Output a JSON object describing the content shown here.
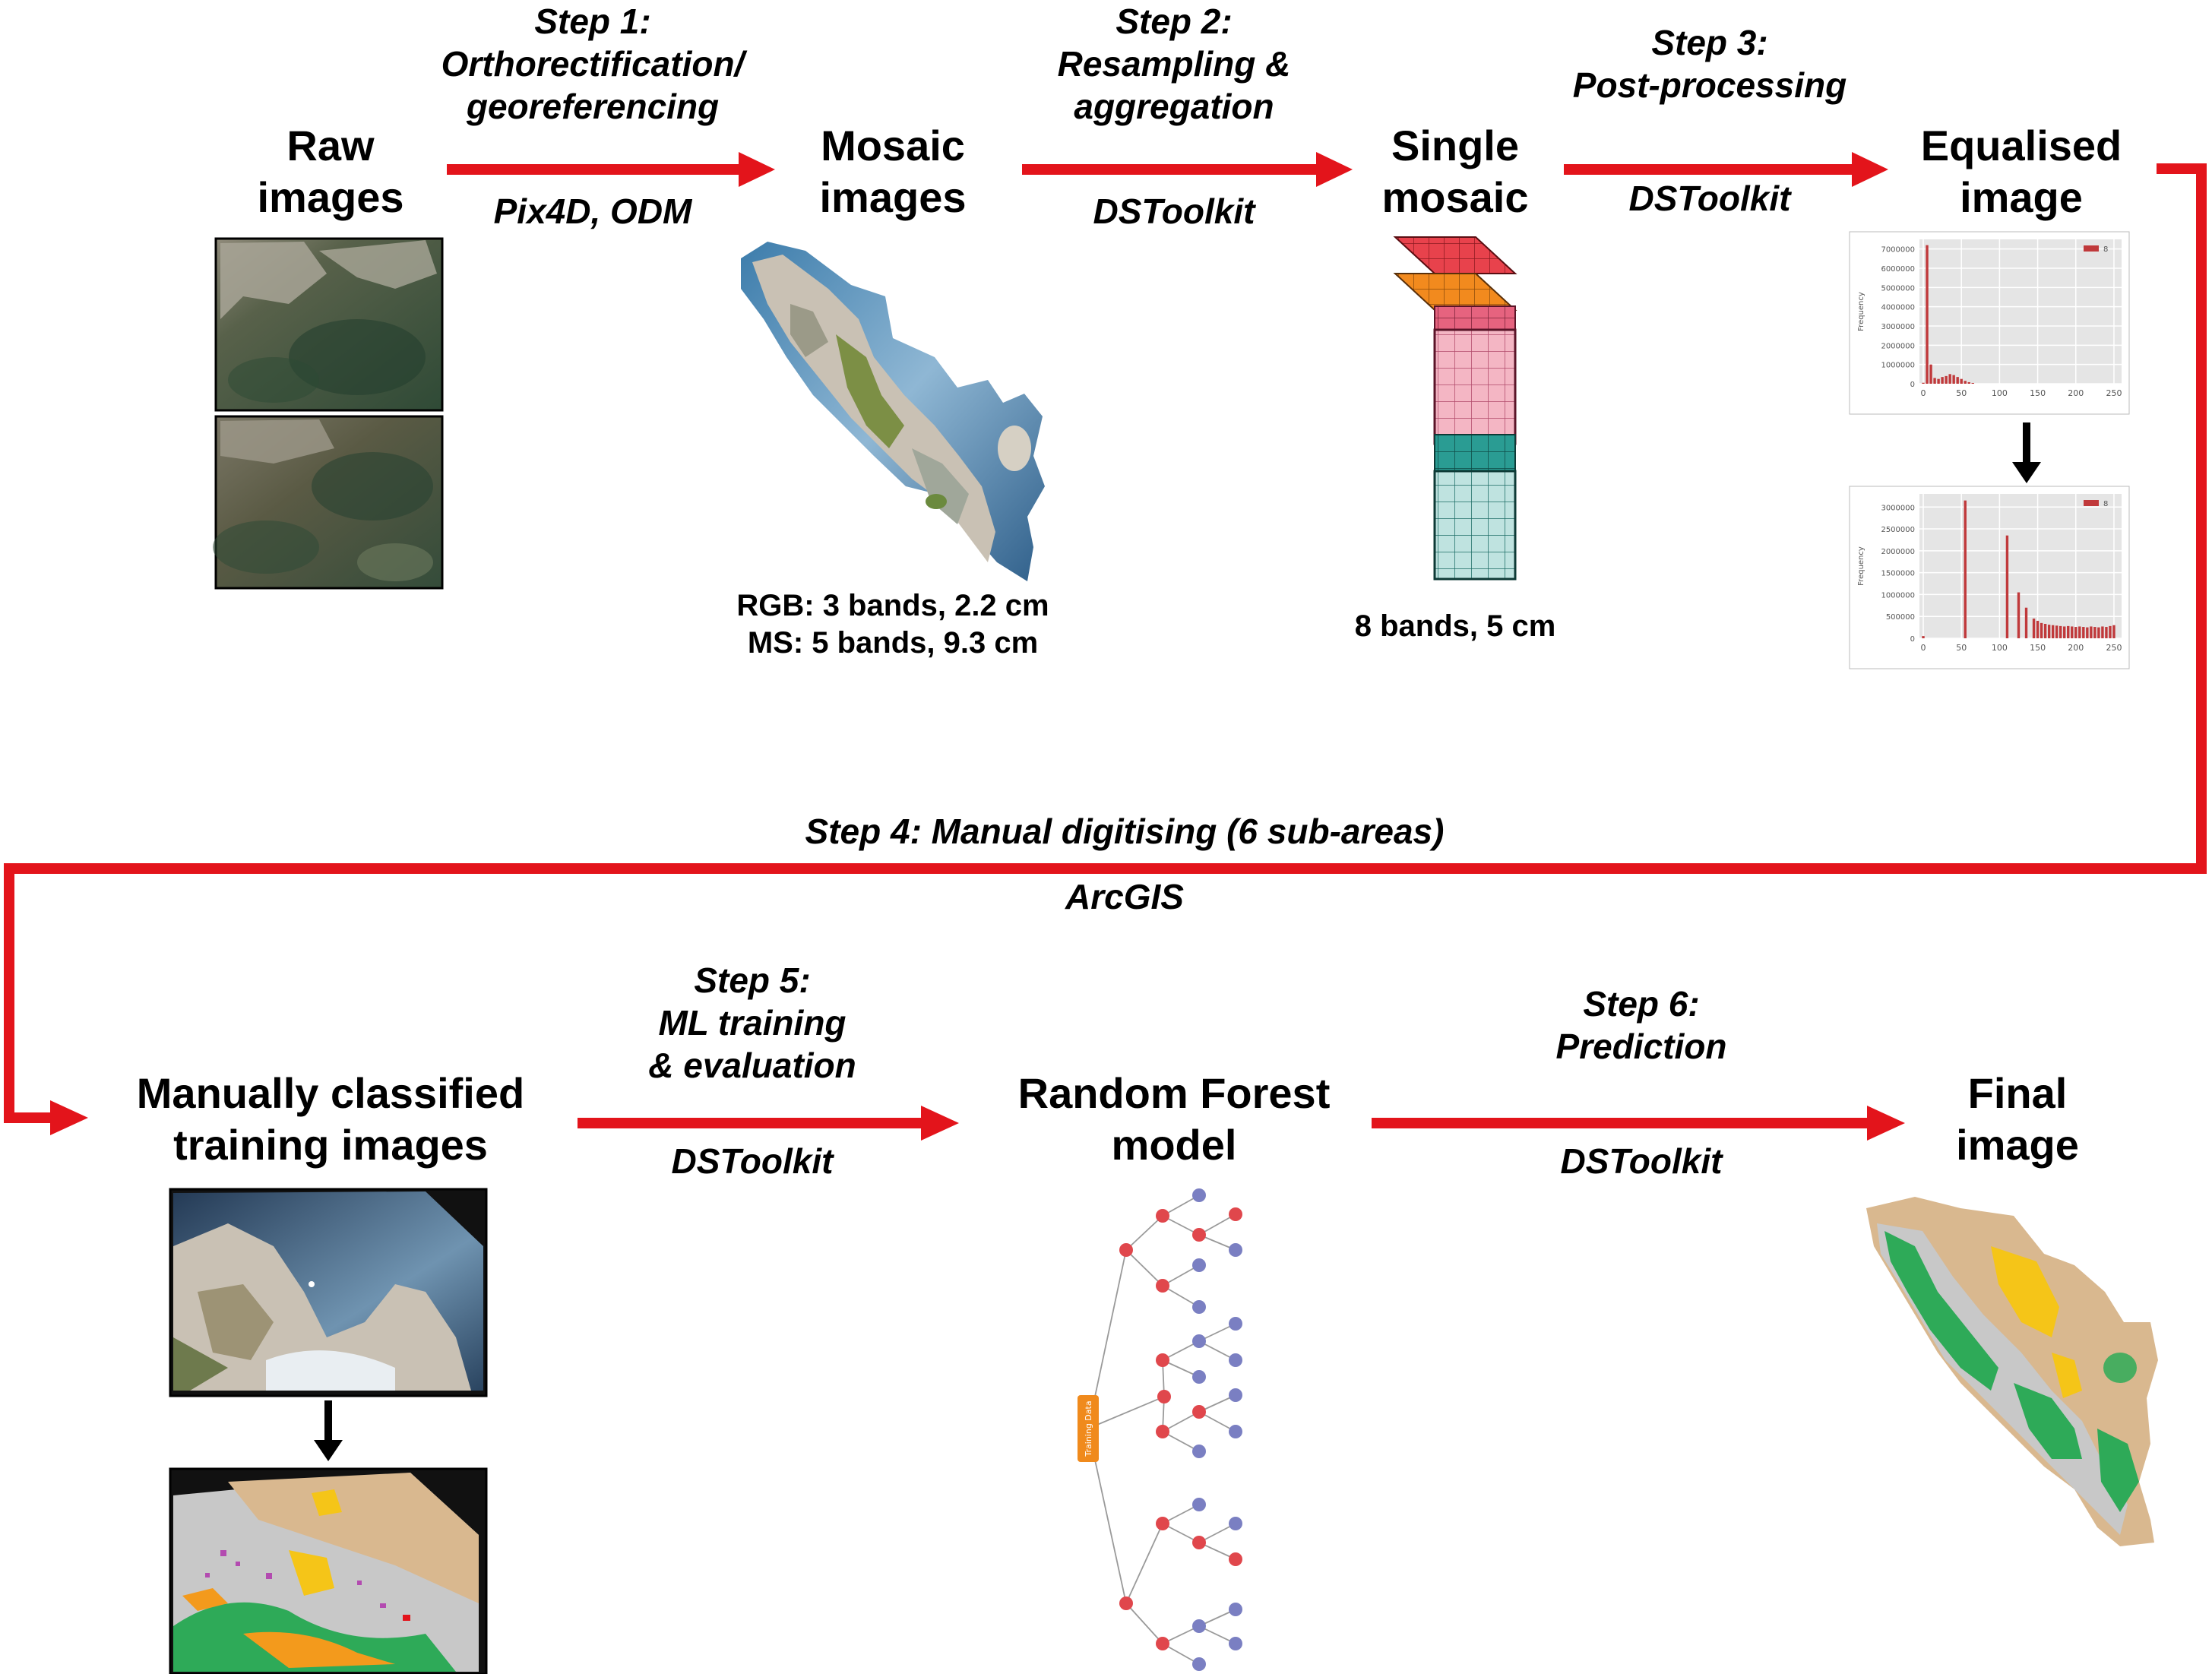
{
  "colors": {
    "arrow": "#e3141b",
    "red_band": "#e8424c",
    "orange_band": "#f28a1e",
    "pink_block": "#f4b6c4",
    "teal_block": "#bfe3e0",
    "hist_bar": "#c0393b",
    "node_red": "#e0474c",
    "node_blue": "#7a7fc2",
    "root_box": "#f08a1c",
    "class_green": "#2eaa58",
    "class_yellow": "#f5c518",
    "class_tan": "#d9b88f",
    "class_grey": "#c8c8c8"
  },
  "nodes": {
    "raw": {
      "line1": "Raw",
      "line2": "images"
    },
    "mosaic": {
      "line1": "Mosaic",
      "line2": "images",
      "caption1": "RGB: 3 bands, 2.2 cm",
      "caption2": "MS: 5 bands, 9.3 cm"
    },
    "single": {
      "line1": "Single",
      "line2": "mosaic",
      "caption": "8 bands, 5 cm"
    },
    "equalised": {
      "line1": "Equalised",
      "line2": "image"
    },
    "training": {
      "line1": "Manually classified",
      "line2": "training images"
    },
    "rf": {
      "line1": "Random Forest",
      "line2": "model",
      "root_label": "Training Data"
    },
    "final": {
      "line1": "Final",
      "line2": "image"
    }
  },
  "steps": {
    "s1": {
      "l1": "Step 1:",
      "l2": "Orthorectification/",
      "l3": "georeferencing",
      "tool": "Pix4D, ODM"
    },
    "s2": {
      "l1": "Step 2:",
      "l2": "Resampling &",
      "l3": "aggregation",
      "tool": "DSToolkit"
    },
    "s3": {
      "l1": "Step 3:",
      "l2": "Post-processing",
      "tool": "DSToolkit"
    },
    "s4": {
      "l1": "Step 4: Manual digitising (6 sub-areas)",
      "tool": "ArcGIS"
    },
    "s5": {
      "l1": "Step 5:",
      "l2": "ML training",
      "l3": "& evaluation",
      "tool": "DSToolkit"
    },
    "s6": {
      "l1": "Step 6:",
      "l2": "Prediction",
      "tool": "DSToolkit"
    }
  },
  "histograms": {
    "before": {
      "legend": "8",
      "ylabel": "Frequency",
      "yticks": [
        "0",
        "1000000",
        "2000000",
        "3000000",
        "4000000",
        "5000000",
        "6000000",
        "7000000"
      ],
      "xticks": [
        "0",
        "50",
        "100",
        "150",
        "200",
        "250"
      ],
      "chart_data": {
        "type": "bar",
        "x": [
          0,
          5,
          10,
          15,
          20,
          25,
          30,
          35,
          40,
          45,
          50,
          55,
          60,
          65
        ],
        "values": [
          50000,
          7200000,
          1000000,
          300000,
          250000,
          350000,
          400000,
          500000,
          450000,
          350000,
          250000,
          150000,
          80000,
          40000
        ],
        "ylim": [
          0,
          7500000
        ],
        "xlim": [
          -5,
          260
        ]
      }
    },
    "after": {
      "legend": "8",
      "ylabel": "Frequency",
      "yticks": [
        "0",
        "500000",
        "1000000",
        "1500000",
        "2000000",
        "2500000",
        "3000000"
      ],
      "xticks": [
        "0",
        "50",
        "100",
        "150",
        "200",
        "250"
      ],
      "chart_data": {
        "type": "bar",
        "x": [
          0,
          55,
          110,
          125,
          135,
          145,
          150,
          155,
          160,
          165,
          170,
          175,
          180,
          185,
          190,
          195,
          200,
          205,
          210,
          215,
          220,
          225,
          230,
          235,
          240,
          245,
          250
        ],
        "values": [
          50000,
          3150000,
          2350000,
          1050000,
          700000,
          450000,
          400000,
          350000,
          330000,
          310000,
          300000,
          290000,
          280000,
          270000,
          280000,
          270000,
          260000,
          270000,
          260000,
          250000,
          270000,
          260000,
          250000,
          270000,
          260000,
          280000,
          300000
        ],
        "ylim": [
          0,
          3300000
        ],
        "xlim": [
          -5,
          260
        ]
      }
    }
  }
}
